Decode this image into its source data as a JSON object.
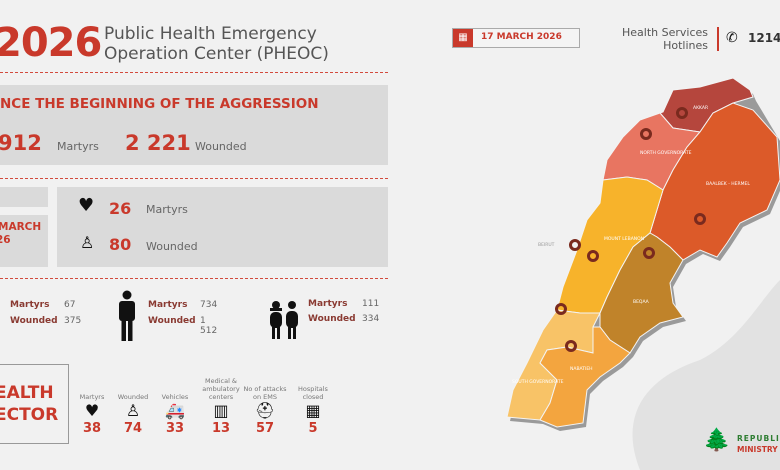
{
  "header": {
    "year": "2026",
    "title_line1": "Public Health Emergency",
    "title_line2": "Operation Center (PHEOC)",
    "date": "17 MARCH 2026",
    "hotlines_line1": "Health Services",
    "hotlines_line2": "Hotlines",
    "hotline_number": "1214"
  },
  "cumulative": {
    "heading": "NCE THE BEGINNING OF THE AGGRESSION",
    "martyrs_value": "912",
    "martyrs_label": "Martyrs",
    "wounded_value": "2 221",
    "wounded_label": "Wounded"
  },
  "daily": {
    "date_line1": "MARCH",
    "date_line2": "26",
    "martyrs_value": "26",
    "martyrs_label": "Martyrs",
    "wounded_value": "80",
    "wounded_label": "Wounded"
  },
  "demographics": [
    {
      "icon": "woman-icon",
      "martyrs_label": "Martyrs",
      "martyrs": "67",
      "wounded_label": "Wounded",
      "wounded": "375"
    },
    {
      "icon": "man-icon",
      "martyrs_label": "Martyrs",
      "martyrs": "734",
      "wounded_label": "Wounded",
      "wounded": "1 512"
    },
    {
      "icon": "children-icon",
      "martyrs_label": "Martyrs",
      "martyrs": "111",
      "wounded_label": "Wounded",
      "wounded": "334"
    }
  ],
  "health_sector": {
    "title_line1": "EALTH",
    "title_line2": "ECTOR",
    "items": [
      {
        "label": "Martyrs",
        "value": "38",
        "icon": "heart-icon"
      },
      {
        "label": "Wounded",
        "value": "74",
        "icon": "wounded-person-icon"
      },
      {
        "label": "Vehicles",
        "value": "33",
        "icon": "ambulance-icon"
      },
      {
        "label": "Medical & ambulatory centers",
        "value": "13",
        "icon": "clinic-icon"
      },
      {
        "label": "No of attacks on EMS",
        "value": "57",
        "icon": "paramedic-icon"
      },
      {
        "label": "Hospitals closed",
        "value": "5",
        "icon": "hospital-icon"
      }
    ]
  },
  "map": {
    "regions": {
      "akkar": "AKKAR",
      "north": "NORTH GOVERNORATE",
      "baalbek": "BAALBEK - HERMEL",
      "mount": "MOUNT LEBANON",
      "beirut": "BEIRUT",
      "beqaa": "BEQAA",
      "nabatieh": "NABATIEH",
      "south": "SOUTH GOVERNORATE"
    },
    "colors": {
      "akkar": "#b5463d",
      "north": "#e87561",
      "baalbek": "#dc5a29",
      "mount": "#f7b32b",
      "beqaa": "#c0832a",
      "nabatieh": "#f3a53f",
      "south": "#f8c367",
      "marker": "#7a2a1e"
    }
  },
  "logo": {
    "line1": "REPUBLIC OF",
    "line2": "MINISTRY OF P"
  },
  "colors": {
    "accent": "#c9392b",
    "panel": "#dadada",
    "background": "#f1f1f1"
  }
}
